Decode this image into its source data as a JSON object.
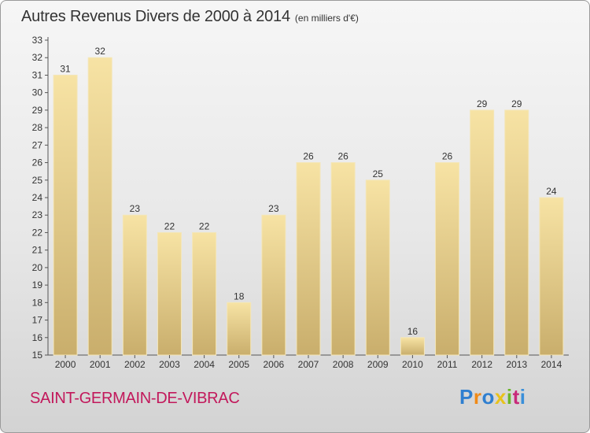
{
  "header": {
    "title": "Autres Revenus Divers de 2000 à 2014",
    "unit": "(en milliers d'€)"
  },
  "footer": {
    "commune": "SAINT-GERMAIN-DE-VIBRAC",
    "logo": "Proxiti",
    "logo_colors": [
      "#2f7fd0",
      "#f08a17",
      "#2f7fd0",
      "#e8c21a",
      "#6bb52a",
      "#c82a7a",
      "#3a8fd9"
    ]
  },
  "colors": {
    "bar_light": "#f7e3a4",
    "bar_dark": "#c9ae6c",
    "commune": "#c2185b",
    "text": "#333333"
  },
  "chart_data": {
    "type": "bar",
    "title": "Autres Revenus Divers de 2000 à 2014",
    "categories": [
      "2000",
      "2001",
      "2002",
      "2003",
      "2004",
      "2005",
      "2006",
      "2007",
      "2008",
      "2009",
      "2010",
      "2011",
      "2012",
      "2013",
      "2014"
    ],
    "values": [
      31,
      32,
      23,
      22,
      22,
      18,
      23,
      26,
      26,
      25,
      16,
      26,
      29,
      29,
      24
    ],
    "ylim": [
      15,
      33
    ],
    "yticks": [
      15,
      16,
      17,
      18,
      19,
      20,
      21,
      22,
      23,
      24,
      25,
      26,
      27,
      28,
      29,
      30,
      31,
      32,
      33
    ],
    "grid": false,
    "legend": "none"
  }
}
